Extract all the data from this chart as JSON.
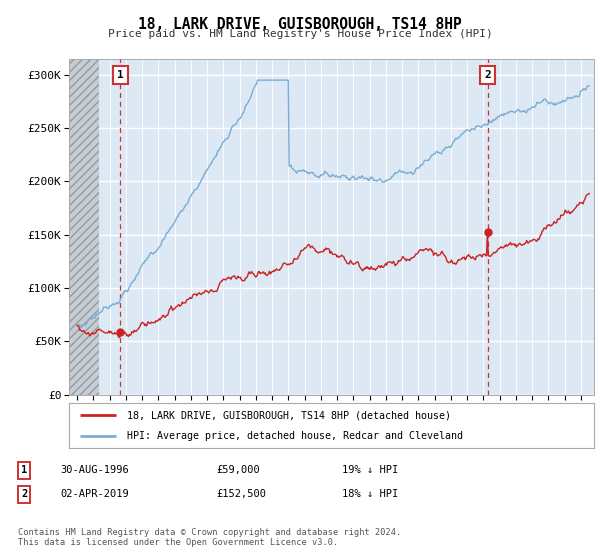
{
  "title": "18, LARK DRIVE, GUISBOROUGH, TS14 8HP",
  "subtitle": "Price paid vs. HM Land Registry's House Price Index (HPI)",
  "ylabel_ticks": [
    "£0",
    "£50K",
    "£100K",
    "£150K",
    "£200K",
    "£250K",
    "£300K"
  ],
  "ytick_values": [
    0,
    50000,
    100000,
    150000,
    200000,
    250000,
    300000
  ],
  "ylim": [
    0,
    315000
  ],
  "xlim_start": 1993.5,
  "xlim_end": 2025.8,
  "hpi_color": "#7aadd4",
  "price_color": "#cc2222",
  "dashed_line_color": "#cc3333",
  "bg_color": "#ffffff",
  "plot_bg": "#dce9f5",
  "marker1_year": 1996.66,
  "marker1_price": 59000,
  "marker2_year": 2019.25,
  "marker2_price": 152500,
  "legend_label1": "18, LARK DRIVE, GUISBOROUGH, TS14 8HP (detached house)",
  "legend_label2": "HPI: Average price, detached house, Redcar and Cleveland",
  "note1_date": "30-AUG-1996",
  "note1_price": "£59,000",
  "note1_hpi": "19% ↓ HPI",
  "note2_date": "02-APR-2019",
  "note2_price": "£152,500",
  "note2_hpi": "18% ↓ HPI",
  "footnote": "Contains HM Land Registry data © Crown copyright and database right 2024.\nThis data is licensed under the Open Government Licence v3.0."
}
